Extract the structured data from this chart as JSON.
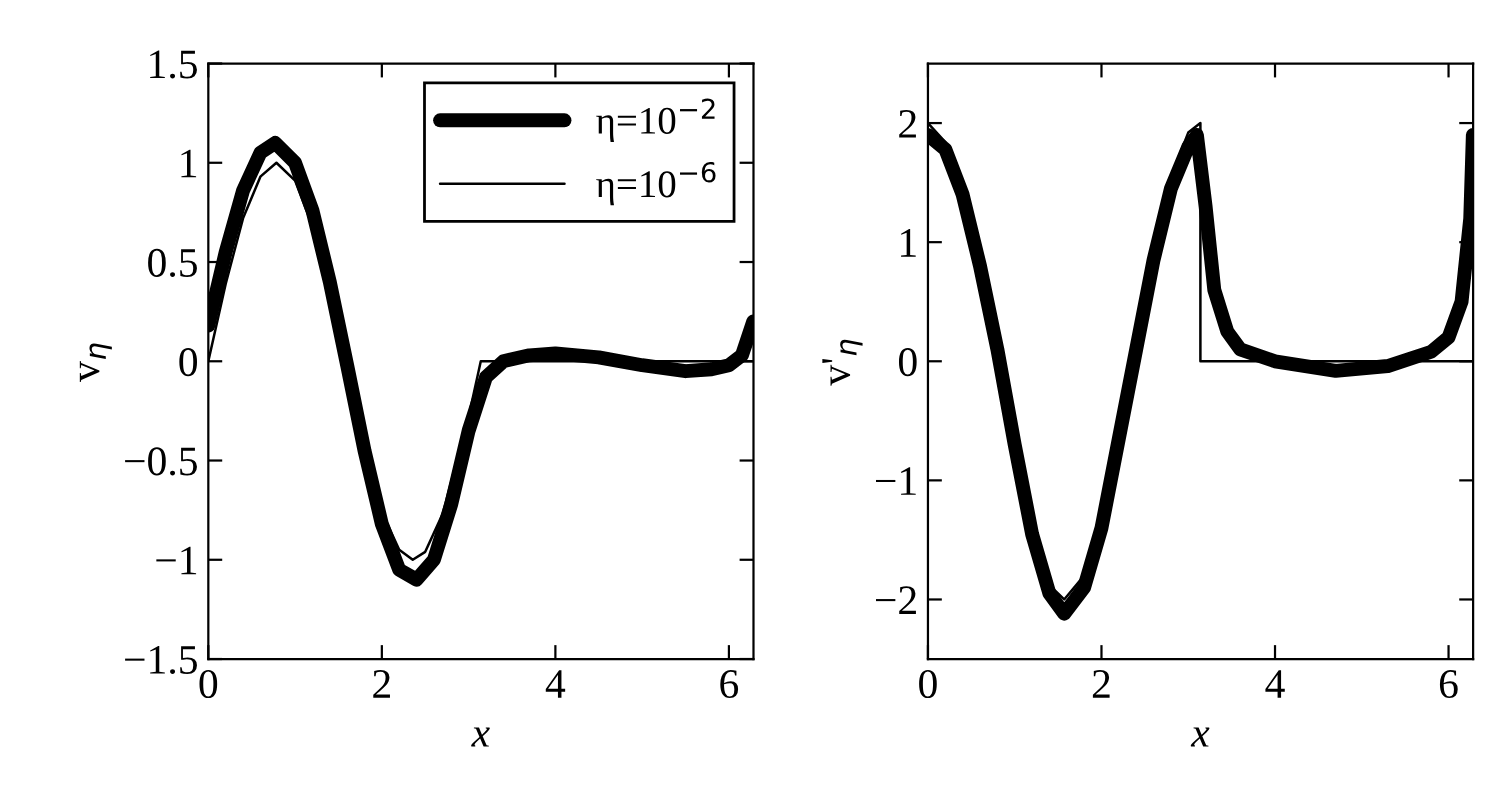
{
  "chart_data": [
    {
      "type": "line",
      "xlabel": "x",
      "ylabel": "v$_{η}$",
      "xlim": [
        0,
        6.2832
      ],
      "ylim": [
        -1.5,
        1.5
      ],
      "xticks": [
        0,
        2,
        4,
        6
      ],
      "yticks": [
        {
          "value": -1.5,
          "label": "−1.5"
        },
        {
          "value": -1,
          "label": "−1"
        },
        {
          "value": -0.5,
          "label": "−0.5"
        },
        0,
        0.5,
        1,
        1.5
      ],
      "legend": "top right",
      "grid": false,
      "series": [
        {
          "name": "η=10$^{−2}$",
          "color": "#000000",
          "x": [
            0,
            0.2,
            0.4,
            0.6,
            0.77,
            1.0,
            1.2,
            1.4,
            1.6,
            1.8,
            2.0,
            2.2,
            2.4,
            2.6,
            2.8,
            3.0,
            3.2,
            3.4,
            3.7,
            4.0,
            4.5,
            5.0,
            5.5,
            5.8,
            6.0,
            6.15,
            6.28
          ],
          "values": [
            0.18,
            0.55,
            0.86,
            1.05,
            1.1,
            1.0,
            0.76,
            0.4,
            -0.02,
            -0.45,
            -0.82,
            -1.05,
            -1.1,
            -1.0,
            -0.72,
            -0.35,
            -0.08,
            0.0,
            0.03,
            0.04,
            0.02,
            -0.02,
            -0.05,
            -0.04,
            -0.02,
            0.03,
            0.2
          ]
        },
        {
          "name": "η=10$^{−6}$",
          "color": "#000000",
          "x": [
            0,
            0.2,
            0.4,
            0.6,
            0.785,
            1.0,
            1.2,
            1.4,
            1.6,
            1.8,
            2.0,
            2.2,
            2.356,
            2.5,
            2.7,
            2.9,
            3.0,
            3.1,
            3.14,
            3.5,
            4.0,
            5.0,
            6.0,
            6.28
          ],
          "values": [
            0,
            0.39,
            0.72,
            0.93,
            1.0,
            0.91,
            0.68,
            0.33,
            -0.06,
            -0.44,
            -0.76,
            -0.95,
            -1.0,
            -0.96,
            -0.77,
            -0.44,
            -0.28,
            -0.08,
            0,
            0,
            0,
            0,
            0,
            0
          ]
        }
      ]
    },
    {
      "type": "line",
      "xlabel": "x",
      "ylabel": "v'$_{η}$",
      "xlim": [
        0,
        6.2832
      ],
      "ylim": [
        -2.5,
        2.5
      ],
      "xticks": [
        0,
        2,
        4,
        6
      ],
      "yticks": [
        {
          "value": -2,
          "label": "−2"
        },
        {
          "value": -1,
          "label": "−1"
        },
        0,
        1,
        2
      ],
      "grid": false,
      "series": [
        {
          "color": "#000000",
          "x": [
            0,
            0.2,
            0.4,
            0.6,
            0.8,
            1.0,
            1.2,
            1.4,
            1.57,
            1.8,
            2.0,
            2.2,
            2.4,
            2.6,
            2.8,
            3.0,
            3.1,
            3.2,
            3.3,
            3.45,
            3.6,
            4.0,
            4.7,
            5.3,
            5.8,
            6.0,
            6.15,
            6.25,
            6.28
          ],
          "values": [
            1.9,
            1.78,
            1.4,
            0.8,
            0.1,
            -0.7,
            -1.45,
            -1.95,
            -2.12,
            -1.9,
            -1.4,
            -0.65,
            0.1,
            0.85,
            1.45,
            1.8,
            1.9,
            1.3,
            0.6,
            0.25,
            0.1,
            0.0,
            -0.08,
            -0.04,
            0.08,
            0.2,
            0.5,
            1.2,
            1.9
          ]
        },
        {
          "color": "#000000",
          "x": [
            0,
            0.2,
            0.4,
            0.6,
            0.785,
            1.0,
            1.2,
            1.4,
            1.57,
            1.8,
            2.0,
            2.2,
            2.356,
            2.6,
            2.8,
            3.0,
            3.14,
            3.14,
            4.0,
            5.0,
            6.28
          ],
          "values": [
            2,
            1.84,
            1.39,
            0.72,
            0,
            -0.83,
            -1.47,
            -1.88,
            -2,
            -1.8,
            -1.31,
            -0.62,
            0,
            0.94,
            1.55,
            1.92,
            2,
            0,
            0,
            0,
            0
          ]
        }
      ]
    }
  ]
}
